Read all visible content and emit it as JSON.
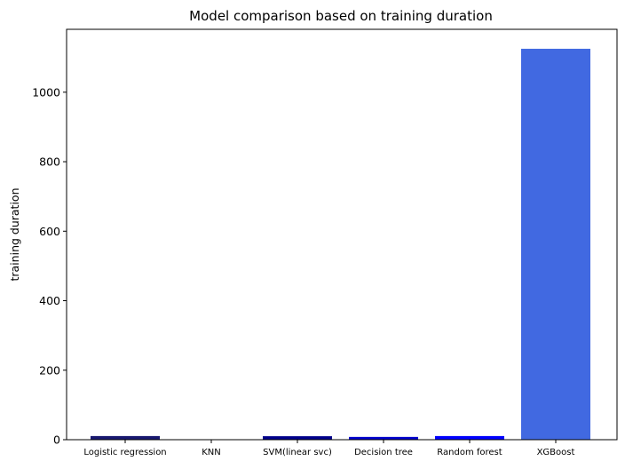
{
  "chart_data": {
    "type": "bar",
    "title": "Model comparison based on training duration",
    "xlabel": "",
    "ylabel": "training duration",
    "categories": [
      "Logistic regression",
      "KNN",
      "SVM(linear svc)",
      "Decision tree",
      "Random forest",
      "XGBoost"
    ],
    "values": [
      10.5,
      0.5,
      10.0,
      8.0,
      10.5,
      1125
    ],
    "colors": [
      "#191970",
      "#7b68ee",
      "#00008b",
      "#0000cd",
      "#0000ff",
      "#4169e1"
    ],
    "ylim": [
      0,
      1181
    ],
    "yticks": [
      0,
      200,
      400,
      600,
      800,
      1000
    ],
    "grid": false,
    "legend": "none"
  }
}
